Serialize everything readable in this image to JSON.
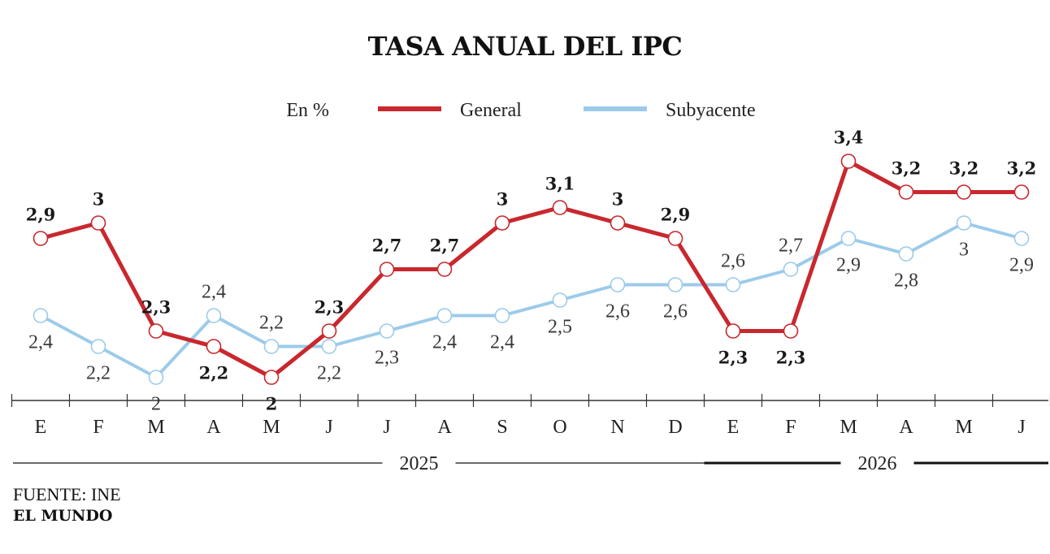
{
  "chart_data": {
    "type": "line",
    "title": "TASA ANUAL DEL IPC",
    "unit_label": "En %",
    "categories": [
      "E",
      "F",
      "M",
      "A",
      "M",
      "J",
      "J",
      "A",
      "S",
      "O",
      "N",
      "D",
      "E",
      "F",
      "M",
      "A",
      "M",
      "J"
    ],
    "years": [
      {
        "label": "2025",
        "from_index": 0,
        "to_index": 11
      },
      {
        "label": "2026",
        "from_index": 12,
        "to_index": 17
      }
    ],
    "series": [
      {
        "name": "General",
        "color": "#c8282e",
        "values": [
          2.9,
          3,
          2.3,
          2.2,
          2,
          2.3,
          2.7,
          2.7,
          3,
          3.1,
          3,
          2.9,
          2.3,
          2.3,
          3.4,
          3.2,
          3.2,
          3.2
        ],
        "labels": [
          "2,9",
          "3",
          "2,3",
          "2,2",
          "2",
          "2,3",
          "2,7",
          "2,7",
          "3",
          "3,1",
          "3",
          "2,9",
          "2,3",
          "2,3",
          "3,4",
          "3,2",
          "3,2",
          "3,2"
        ],
        "label_pos": [
          "above",
          "above",
          "above",
          "below",
          "below",
          "above",
          "above",
          "above",
          "above",
          "above",
          "above",
          "above",
          "below",
          "below",
          "above",
          "above",
          "above",
          "above"
        ]
      },
      {
        "name": "Subyacente",
        "color": "#9ccbea",
        "values": [
          2.4,
          2.2,
          2,
          2.4,
          2.2,
          2.2,
          2.3,
          2.4,
          2.4,
          2.5,
          2.6,
          2.6,
          2.6,
          2.7,
          2.9,
          2.8,
          3,
          2.9
        ],
        "labels": [
          "2,4",
          "2,2",
          "2",
          "2,4",
          "2,2",
          "2,2",
          "2,3",
          "2,4",
          "2,4",
          "2,5",
          "2,6",
          "2,6",
          "2,6",
          "2,7",
          "2,9",
          "2,8",
          "3",
          "2,9"
        ],
        "label_pos": [
          "below",
          "below",
          "below",
          "above",
          "above",
          "below",
          "below",
          "below",
          "below",
          "below",
          "below",
          "below",
          "above",
          "above",
          "below",
          "below",
          "below",
          "below"
        ]
      }
    ],
    "ylim": [
      1.85,
      3.55
    ],
    "grid": false,
    "legend_placement": "top-center"
  },
  "footer": {
    "source": "FUENTE: INE",
    "brand": "EL MUNDO"
  }
}
